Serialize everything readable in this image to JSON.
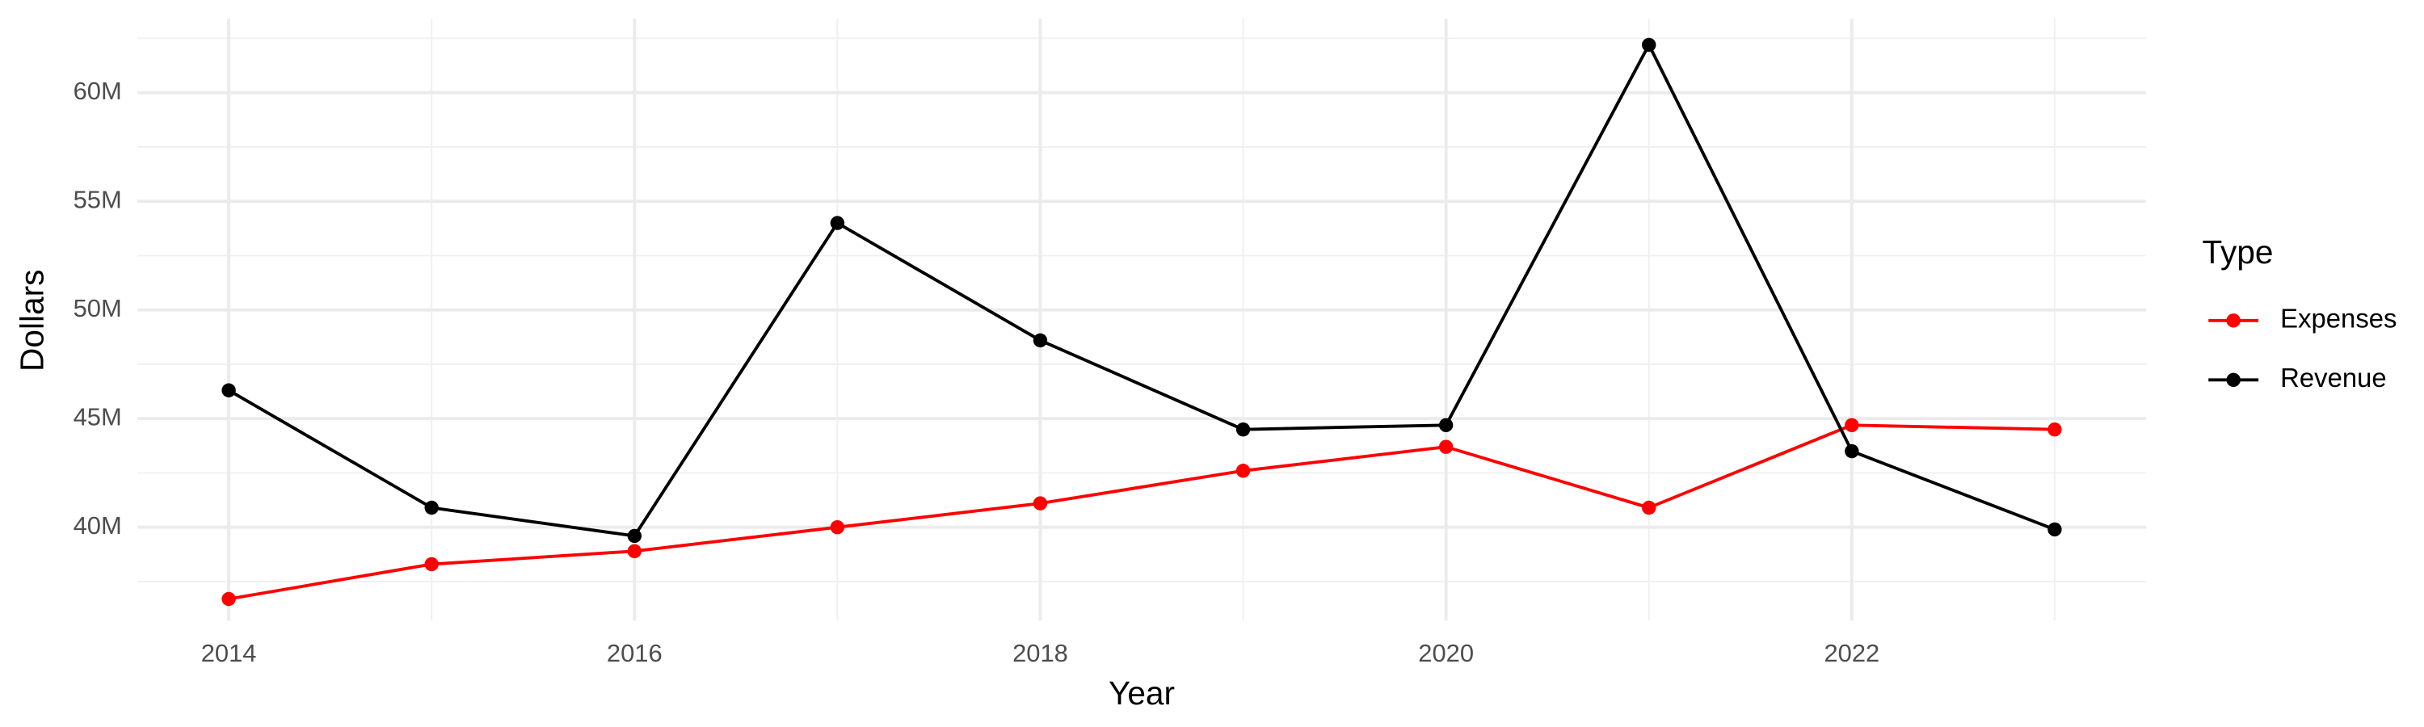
{
  "chart_data": {
    "type": "line",
    "x_label": "Year",
    "y_label": "Dollars",
    "legend_title": "Type",
    "x": [
      2014,
      2015,
      2016,
      2017,
      2018,
      2019,
      2020,
      2021,
      2022,
      2023
    ],
    "series": [
      {
        "name": "Expenses",
        "color": "#ff0000",
        "values": [
          36700000,
          38300000,
          38900000,
          40000000,
          41100000,
          42600000,
          43700000,
          40900000,
          44700000,
          44500000
        ]
      },
      {
        "name": "Revenue",
        "color": "#000000",
        "values": [
          46300000,
          40900000,
          39600000,
          54000000,
          48600000,
          44500000,
          44700000,
          62200000,
          43500000,
          39900000
        ]
      }
    ],
    "xlim": [
      2013.55,
      2023.45
    ],
    "xticks": [
      2014,
      2016,
      2018,
      2020,
      2022
    ],
    "ylim": [
      35700000,
      63400000
    ],
    "yticks": [
      {
        "value": 40000000,
        "label": "40M"
      },
      {
        "value": 45000000,
        "label": "45M"
      },
      {
        "value": 50000000,
        "label": "50M"
      },
      {
        "value": 55000000,
        "label": "55M"
      },
      {
        "value": 60000000,
        "label": "60M"
      }
    ],
    "grid": true,
    "legend": "right"
  }
}
